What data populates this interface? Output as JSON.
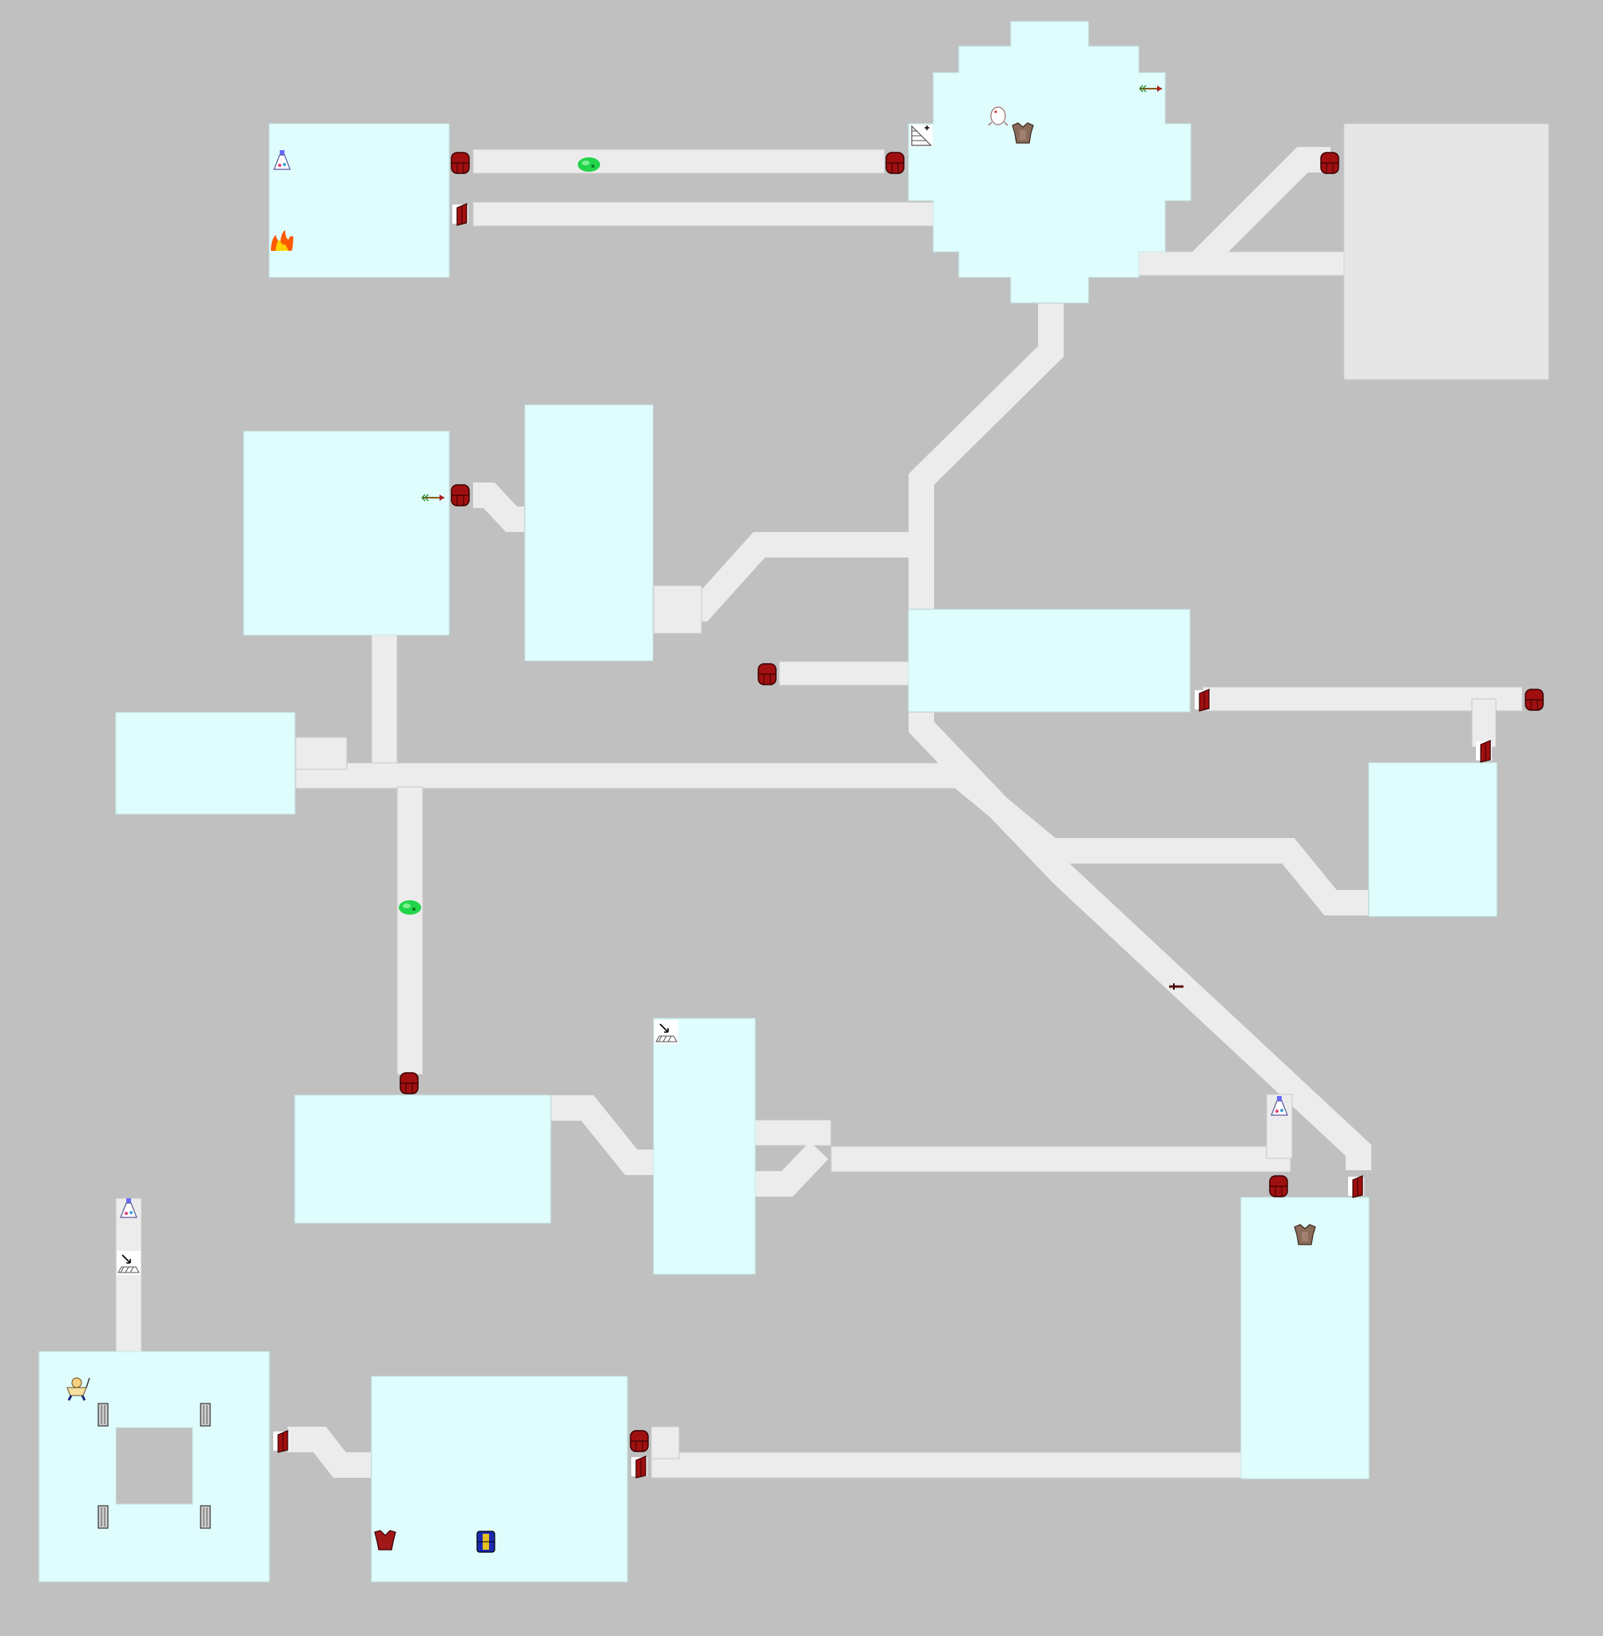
{
  "map": {
    "colors": {
      "background": "#c0c0c0",
      "room_floor": "#dffdfd",
      "dark_room_floor": "#e6e6e6",
      "corridor": "#ececec",
      "door": "#a01010",
      "door_outline": "#3a0000"
    },
    "objects": [
      {
        "id": "potion-1",
        "icon": "potion-icon"
      },
      {
        "id": "fire-1",
        "icon": "fire-icon"
      },
      {
        "id": "slime-1",
        "icon": "green-slime-icon"
      },
      {
        "id": "stairs-up-1",
        "icon": "stairs-up-icon"
      },
      {
        "id": "creature-1",
        "icon": "white-creature-icon"
      },
      {
        "id": "armor-1",
        "icon": "leather-armor-icon"
      },
      {
        "id": "arrow-1",
        "icon": "arrow-icon"
      },
      {
        "id": "arrow-2",
        "icon": "arrow-icon"
      },
      {
        "id": "slime-2",
        "icon": "green-slime-icon"
      },
      {
        "id": "stairs-down-1",
        "icon": "stairs-down-icon"
      },
      {
        "id": "dagger-1",
        "icon": "dagger-icon"
      },
      {
        "id": "potion-2",
        "icon": "potion-icon"
      },
      {
        "id": "armor-2",
        "icon": "leather-armor-icon"
      },
      {
        "id": "potion-3",
        "icon": "potion-icon"
      },
      {
        "id": "stairs-down-2",
        "icon": "stairs-down-icon"
      },
      {
        "id": "hero",
        "icon": "hero-player-icon"
      },
      {
        "id": "pillar-1",
        "icon": "pillar-icon"
      },
      {
        "id": "pillar-2",
        "icon": "pillar-icon"
      },
      {
        "id": "pillar-3",
        "icon": "pillar-icon"
      },
      {
        "id": "pillar-4",
        "icon": "pillar-icon"
      },
      {
        "id": "red-armor-1",
        "icon": "red-armor-icon"
      },
      {
        "id": "blue-ring-1",
        "icon": "blue-chest-icon"
      }
    ]
  }
}
